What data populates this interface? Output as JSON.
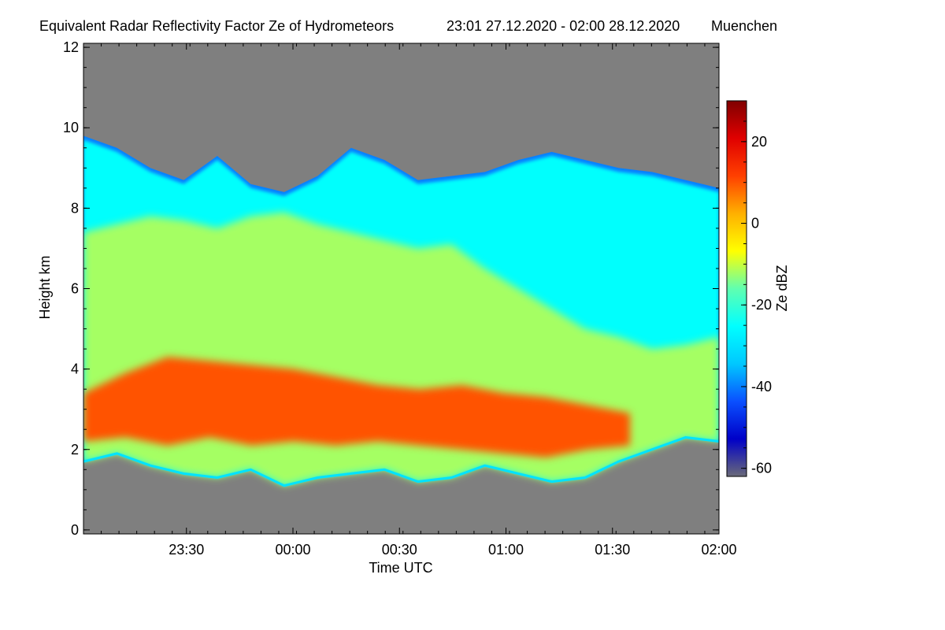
{
  "chart_data": {
    "type": "heatmap",
    "title": "Equivalent Radar Reflectivity Factor Ze of Hydrometeors",
    "time_range": "23:01 27.12.2020 - 02:00 28.12.2020",
    "location": "Muenchen",
    "xlabel": "Time UTC",
    "ylabel": "Height km",
    "x_ticks": [
      "23:30",
      "00:00",
      "00:30",
      "01:00",
      "01:30",
      "02:00"
    ],
    "x_tick_minutes": [
      29,
      59,
      89,
      119,
      149,
      179
    ],
    "xlim_minutes": [
      0,
      179
    ],
    "y_ticks": [
      0,
      2,
      4,
      6,
      8,
      10,
      12
    ],
    "ylim": [
      -0.1,
      12.1
    ],
    "colorbar": {
      "label": "Ze dBZ",
      "ticks": [
        20,
        0,
        -20,
        -40,
        -60
      ],
      "range": [
        -62,
        30
      ],
      "colors": [
        "#6a6a78",
        "#0000c8",
        "#0a50ff",
        "#00c8ff",
        "#00ffff",
        "#60ffb0",
        "#ffff00",
        "#ffb000",
        "#ff4000",
        "#e00000",
        "#800000"
      ]
    },
    "background_color": "#7f7f7f",
    "regions": [
      {
        "name": "cloud-top-edge",
        "ze_dbz": -40,
        "top_km": [
          9.8,
          9.5,
          9.0,
          8.7,
          9.3,
          8.6,
          8.4,
          8.8,
          9.5,
          9.2,
          8.7,
          8.8,
          8.9,
          9.2,
          9.4,
          9.2,
          9.0,
          8.9,
          8.7,
          8.5
        ]
      },
      {
        "name": "upper-cloud",
        "ze_dbz": -25,
        "top_km": [
          9.7,
          9.4,
          8.9,
          8.6,
          9.2,
          8.5,
          8.3,
          8.7,
          9.4,
          9.1,
          8.6,
          8.7,
          8.8,
          9.1,
          9.3,
          9.1,
          8.9,
          8.8,
          8.6,
          8.4
        ]
      },
      {
        "name": "mid-cloud",
        "ze_dbz": -12,
        "top_km": [
          7.4,
          7.6,
          7.8,
          7.7,
          7.5,
          7.8,
          7.9,
          7.6,
          7.4,
          7.2,
          7.0,
          7.1,
          6.5,
          6.0,
          5.5,
          5.0,
          4.8,
          4.5,
          4.6,
          4.8
        ]
      },
      {
        "name": "melting-layer-band",
        "ze_dbz": 10,
        "top_km": [
          3.4,
          3.9,
          4.3,
          4.2,
          4.1,
          4.0,
          3.8,
          3.6,
          3.5,
          3.6,
          3.4,
          3.3,
          3.1,
          2.9
        ],
        "bottom_km": [
          2.2,
          2.3,
          2.1,
          2.3,
          2.1,
          2.2,
          2.1,
          2.2,
          2.1,
          2.0,
          1.9,
          1.8,
          2.0,
          2.1
        ]
      },
      {
        "name": "cloud-base",
        "ze_dbz": -30,
        "base_km": [
          1.7,
          1.9,
          1.6,
          1.4,
          1.3,
          1.5,
          1.1,
          1.3,
          1.4,
          1.5,
          1.2,
          1.3,
          1.6,
          1.4,
          1.2,
          1.3,
          1.7,
          2.0,
          2.3,
          2.2
        ]
      }
    ]
  }
}
